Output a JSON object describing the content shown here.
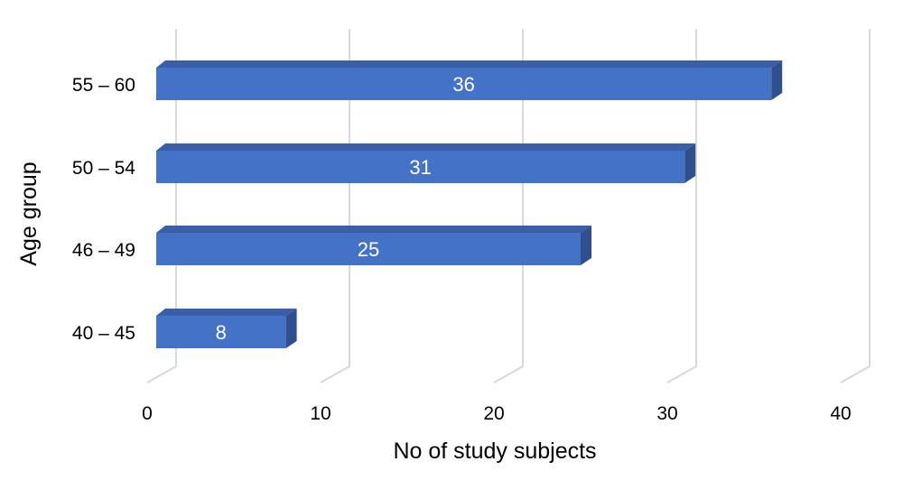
{
  "chart_data": {
    "type": "bar",
    "orientation": "horizontal",
    "style": "3d",
    "categories": [
      "40 – 45",
      "46 – 49",
      "50 – 54",
      "55 – 60"
    ],
    "values": [
      8,
      25,
      31,
      36
    ],
    "data_labels": [
      "8",
      "25",
      "31",
      "36"
    ],
    "xlabel": "No of study subjects",
    "ylabel": "Age group",
    "xlim": [
      0,
      40
    ],
    "xticks": [
      0,
      10,
      20,
      30,
      40
    ],
    "xtick_labels": [
      "0",
      "10",
      "20",
      "30",
      "40"
    ],
    "grid": true,
    "legend": false,
    "colors": {
      "bar_front": "#4472c4",
      "bar_top": "#3a5fa8",
      "bar_side": "#2f4f8f",
      "grid": "#d9d9d9"
    }
  }
}
